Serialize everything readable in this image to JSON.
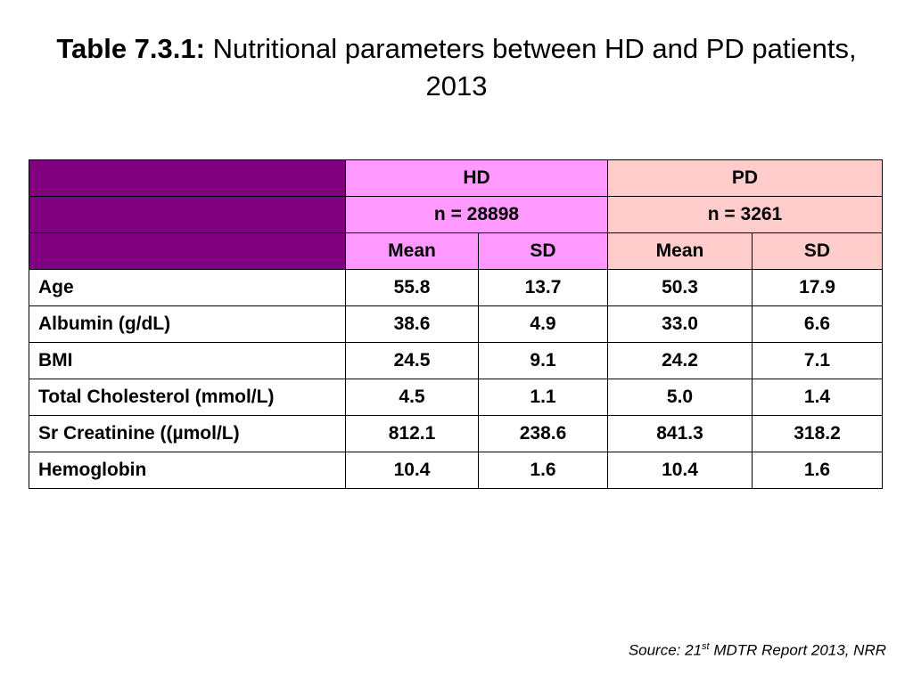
{
  "title": {
    "label": "Table 7.3.1:",
    "text": "Nutritional parameters between HD and PD patients, 2013"
  },
  "table": {
    "groups": [
      {
        "name": "HD",
        "n": "n = 28898"
      },
      {
        "name": "PD",
        "n": "n = 3261"
      }
    ],
    "subheaders": [
      "Mean",
      "SD",
      "Mean",
      "SD"
    ],
    "rows": [
      {
        "label": "Age",
        "values": [
          "55.8",
          "13.7",
          "50.3",
          "17.9"
        ]
      },
      {
        "label": "Albumin (g/dL)",
        "values": [
          "38.6",
          "4.9",
          "33.0",
          "6.6"
        ]
      },
      {
        "label": "BMI",
        "values": [
          "24.5",
          "9.1",
          "24.2",
          "7.1"
        ]
      },
      {
        "label": "Total Cholesterol (mmol/L)",
        "values": [
          "4.5",
          "1.1",
          "5.0",
          "1.4"
        ]
      },
      {
        "label": "Sr Creatinine ((µmol/L)",
        "values": [
          "812.1",
          "238.6",
          "841.3",
          "318.2"
        ]
      },
      {
        "label": "Hemoglobin",
        "values": [
          "10.4",
          "1.6",
          "10.4",
          "1.6"
        ]
      }
    ]
  },
  "source": {
    "prefix": "Source: 21",
    "sup": "st",
    "suffix": " MDTR Report 2013, NRR"
  },
  "colors": {
    "corner": "#800080",
    "hd_header": "#ff99ff",
    "pd_header": "#ffcccc"
  }
}
